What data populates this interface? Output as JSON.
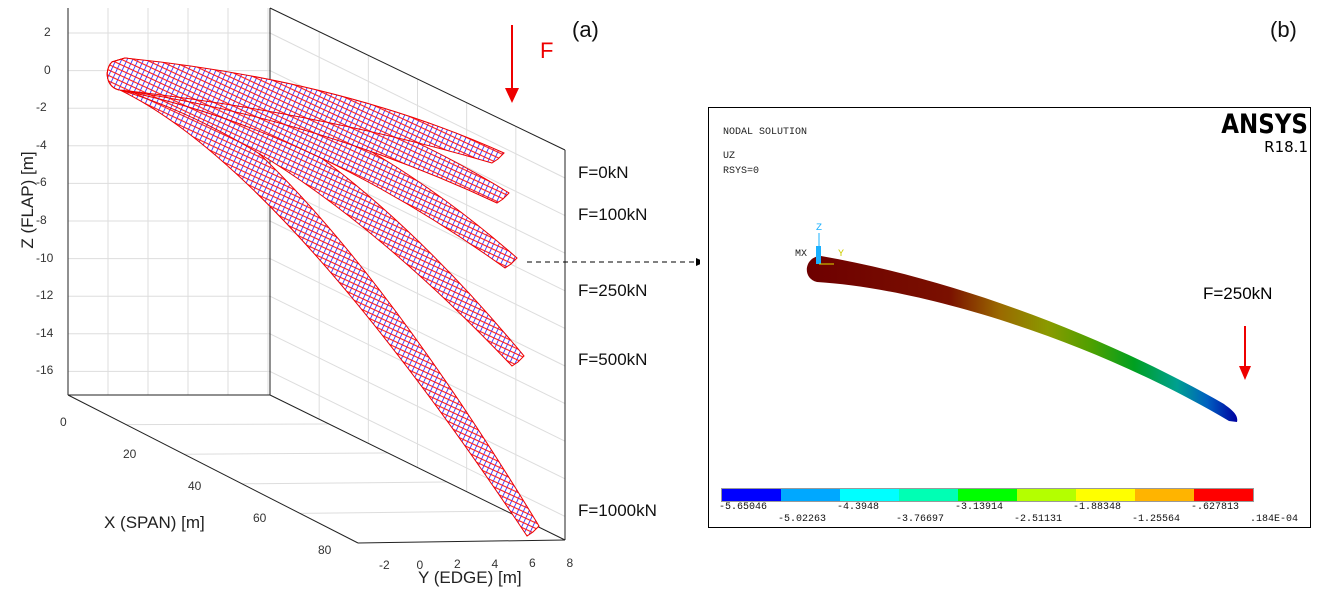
{
  "panel_a": {
    "label": "(a)",
    "force_label": "F"
  },
  "panel_b": {
    "label": "(b)"
  },
  "chart_data": {
    "type": "3d-surface",
    "title": "",
    "xlabel": "X (SPAN)  [m]",
    "ylabel": "Y (EDGE)  [m]",
    "zlabel": "Z (FLAP)  [m]",
    "x_ticks": [
      "0",
      "20",
      "40",
      "60",
      "80"
    ],
    "y_ticks": [
      "-2",
      "0",
      "2",
      "4",
      "6",
      "8"
    ],
    "z_ticks": [
      "2",
      "0",
      "-2",
      "-4",
      "-6",
      "-8",
      "-10",
      "-12",
      "-14",
      "-16"
    ],
    "xlim": [
      0,
      90
    ],
    "ylim": [
      -3,
      8
    ],
    "zlim": [
      -17.5,
      2.5
    ],
    "grid": true,
    "series": [
      {
        "name": "F=0kN",
        "load_kN": 0
      },
      {
        "name": "F=100kN",
        "load_kN": 100
      },
      {
        "name": "F=250kN",
        "load_kN": 250
      },
      {
        "name": "F=500kN",
        "load_kN": 500
      },
      {
        "name": "F=1000kN",
        "load_kN": 1000
      }
    ],
    "mesh_colors": [
      "#0000ff",
      "#ff0000"
    ]
  },
  "ansys": {
    "title": "NODAL SOLUTION",
    "quantity": "UZ",
    "rsys": "RSYS=0",
    "brand": "ANSYS",
    "version": "R18.1",
    "triad": {
      "z": "Z",
      "x": "X",
      "y": "Y",
      "mx": "MX"
    },
    "load_label": "F=250kN",
    "colorbar": {
      "colors": [
        "#0000ff",
        "#00a8ff",
        "#00ffff",
        "#00ffb4",
        "#00ff00",
        "#b4ff00",
        "#ffff00",
        "#ffb400",
        "#ff0000"
      ],
      "labels_top": [
        "-5.65046",
        "-4.3948",
        "-3.13914",
        "-1.88348",
        "-.627813"
      ],
      "labels_bottom": [
        "-5.02263",
        "-3.76697",
        "-2.51131",
        "-1.25564",
        ".184E-04"
      ]
    }
  }
}
